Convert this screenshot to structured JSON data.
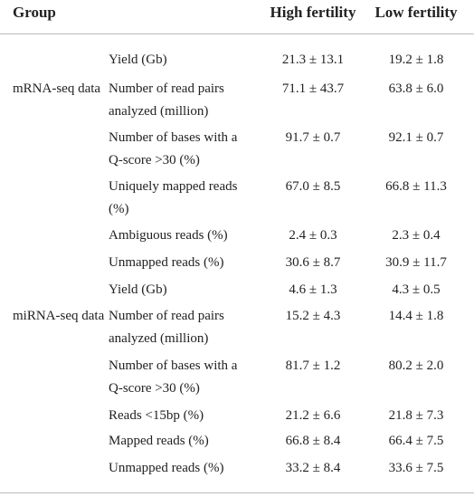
{
  "table": {
    "header": [
      "Group",
      "High fertility",
      "Low fertility"
    ],
    "rows": [
      {
        "metric": [
          "Yield (Gb)"
        ],
        "high": "21.3 ± 13.1",
        "low": "19.2 ± 1.8"
      },
      {
        "group": "mRNA-seq data",
        "metric": [
          "Number of read pairs",
          "analyzed (million)"
        ],
        "high": "71.1 ± 43.7",
        "low": "63.8 ± 6.0"
      },
      {
        "metric": [
          "Number of bases with a",
          "Q-score >30 (%)"
        ],
        "high": "91.7 ± 0.7",
        "low": "92.1 ± 0.7"
      },
      {
        "metric": [
          "Uniquely mapped reads",
          "(%)"
        ],
        "high": "67.0 ± 8.5",
        "low": "66.8 ± 11.3"
      },
      {
        "metric": [
          "Ambiguous reads (%)"
        ],
        "high": "2.4 ± 0.3",
        "low": "2.3 ± 0.4"
      },
      {
        "metric": [
          "Unmapped reads (%)"
        ],
        "high": "30.6 ± 8.7",
        "low": "30.9 ± 11.7"
      },
      {
        "metric": [
          "Yield (Gb)"
        ],
        "high": "4.6 ± 1.3",
        "low": "4.3 ± 0.5"
      },
      {
        "group": "miRNA-seq data",
        "metric": [
          "Number of read pairs",
          "analyzed (million)"
        ],
        "high": "15.2 ± 4.3",
        "low": "14.4 ± 1.8"
      },
      {
        "metric": [
          "Number of bases with a",
          "Q-score >30 (%)"
        ],
        "high": "81.7 ± 1.2",
        "low": "80.2 ± 2.0"
      },
      {
        "metric": [
          "Reads <15bp (%)"
        ],
        "high": "21.2 ± 6.6",
        "low": "21.8 ± 7.3"
      },
      {
        "metric": [
          "Mapped reads (%)"
        ],
        "high": "66.8 ± 8.4",
        "low": "66.4 ± 7.5"
      },
      {
        "metric": [
          "Unmapped reads (%)"
        ],
        "high": "33.2 ± 8.4",
        "low": "33.6 ± 7.5"
      }
    ]
  }
}
